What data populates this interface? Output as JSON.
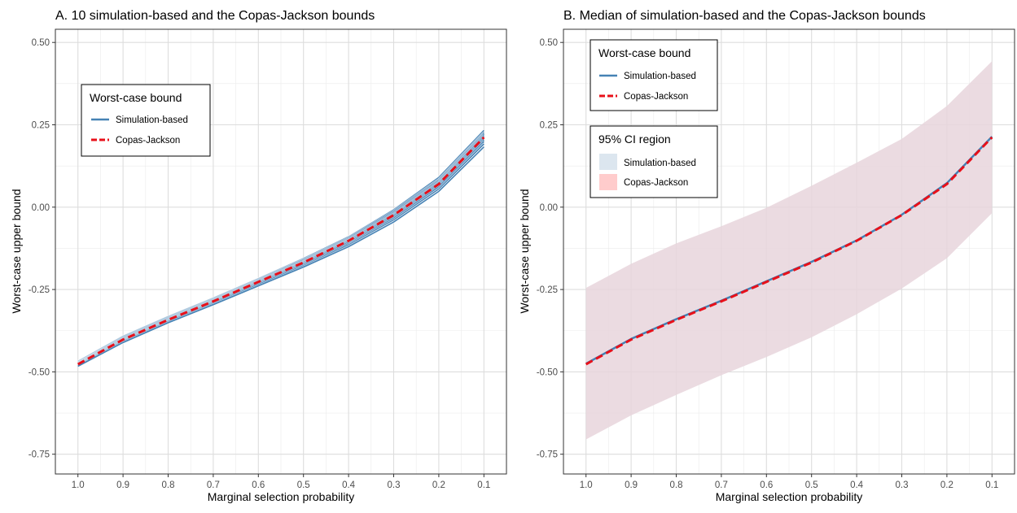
{
  "chart_data": [
    {
      "type": "line",
      "title": "A. 10 simulation-based and the Copas-Jackson bounds",
      "xlabel": "Marginal selection probability",
      "ylabel": "Worst-case upper bound",
      "x": [
        1.0,
        0.9,
        0.8,
        0.7,
        0.6,
        0.5,
        0.4,
        0.3,
        0.2,
        0.1
      ],
      "x_tick_labels": [
        "1.0",
        "0.9",
        "0.8",
        "0.7",
        "0.6",
        "0.5",
        "0.4",
        "0.3",
        "0.2",
        "0.1"
      ],
      "x_reversed": true,
      "xlim": [
        1.05,
        0.05
      ],
      "ylim": [
        -0.81,
        0.54
      ],
      "y_ticks": [
        -0.75,
        -0.5,
        -0.25,
        0.0,
        0.25,
        0.5
      ],
      "y_tick_labels": [
        "-0.75",
        "-0.50",
        "-0.25",
        "0.00",
        "0.25",
        "0.50"
      ],
      "grid": true,
      "legend": {
        "title": "Worst-case bound",
        "placement": "top-left",
        "entries": [
          {
            "label": "Simulation-based",
            "color": "#4682B4",
            "style": "solid"
          },
          {
            "label": "Copas-Jackson",
            "color": "#E8101A",
            "style": "dashed"
          }
        ]
      },
      "series": [
        {
          "kind": "simulation",
          "color": "#4682B4",
          "values": [
            -0.468,
            -0.392,
            -0.332,
            -0.276,
            -0.217,
            -0.156,
            -0.09,
            -0.008,
            0.09,
            0.233
          ]
        },
        {
          "kind": "simulation",
          "color": "#4682B4",
          "values": [
            -0.47,
            -0.394,
            -0.334,
            -0.278,
            -0.219,
            -0.159,
            -0.093,
            -0.012,
            0.084,
            0.226
          ]
        },
        {
          "kind": "simulation",
          "color": "#4682B4",
          "values": [
            -0.472,
            -0.396,
            -0.336,
            -0.28,
            -0.221,
            -0.161,
            -0.096,
            -0.016,
            0.08,
            0.222
          ]
        },
        {
          "kind": "simulation",
          "color": "#4682B4",
          "values": [
            -0.473,
            -0.398,
            -0.338,
            -0.282,
            -0.223,
            -0.164,
            -0.099,
            -0.02,
            0.076,
            0.218
          ]
        },
        {
          "kind": "simulation",
          "color": "#4682B4",
          "values": [
            -0.475,
            -0.4,
            -0.34,
            -0.284,
            -0.225,
            -0.166,
            -0.101,
            -0.023,
            0.073,
            0.214
          ]
        },
        {
          "kind": "simulation",
          "color": "#4682B4",
          "values": [
            -0.476,
            -0.402,
            -0.342,
            -0.286,
            -0.227,
            -0.168,
            -0.104,
            -0.026,
            0.069,
            0.209
          ]
        },
        {
          "kind": "simulation",
          "color": "#4682B4",
          "values": [
            -0.478,
            -0.404,
            -0.344,
            -0.288,
            -0.229,
            -0.171,
            -0.107,
            -0.03,
            0.065,
            0.204
          ]
        },
        {
          "kind": "simulation",
          "color": "#4682B4",
          "values": [
            -0.479,
            -0.406,
            -0.346,
            -0.29,
            -0.232,
            -0.174,
            -0.111,
            -0.034,
            0.061,
            0.199
          ]
        },
        {
          "kind": "simulation",
          "color": "#4682B4",
          "values": [
            -0.481,
            -0.408,
            -0.348,
            -0.293,
            -0.235,
            -0.178,
            -0.115,
            -0.039,
            0.055,
            0.192
          ]
        },
        {
          "kind": "simulation",
          "color": "#4682B4",
          "values": [
            -0.483,
            -0.411,
            -0.351,
            -0.296,
            -0.239,
            -0.182,
            -0.12,
            -0.045,
            0.048,
            0.183
          ]
        },
        {
          "kind": "copas",
          "color": "#E8101A",
          "values": [
            -0.477,
            -0.402,
            -0.342,
            -0.286,
            -0.227,
            -0.168,
            -0.102,
            -0.024,
            0.07,
            0.212
          ]
        }
      ]
    },
    {
      "type": "line",
      "title": "B. Median of simulation-based and the Copas-Jackson bounds",
      "xlabel": "Marginal selection probability",
      "ylabel": "Worst-case upper bound",
      "x": [
        1.0,
        0.9,
        0.8,
        0.7,
        0.6,
        0.5,
        0.4,
        0.3,
        0.2,
        0.1
      ],
      "x_tick_labels": [
        "1.0",
        "0.9",
        "0.8",
        "0.7",
        "0.6",
        "0.5",
        "0.4",
        "0.3",
        "0.2",
        "0.1"
      ],
      "x_reversed": true,
      "xlim": [
        1.05,
        0.05
      ],
      "ylim": [
        -0.81,
        0.54
      ],
      "y_ticks": [
        -0.75,
        -0.5,
        -0.25,
        0.0,
        0.25,
        0.5
      ],
      "y_tick_labels": [
        "-0.75",
        "-0.50",
        "-0.25",
        "0.00",
        "0.25",
        "0.50"
      ],
      "grid": true,
      "legend": [
        {
          "title": "Worst-case bound",
          "placement": "top-left",
          "entries": [
            {
              "label": "Simulation-based",
              "color": "#4682B4",
              "style": "solid"
            },
            {
              "label": "Copas-Jackson",
              "color": "#E8101A",
              "style": "dashed"
            }
          ]
        },
        {
          "title": "95% CI region",
          "placement": "top-left",
          "entries": [
            {
              "label": "Simulation-based",
              "color": "#DCE6EF",
              "style": "fill"
            },
            {
              "label": "Copas-Jackson",
              "color": "#FFCCCC",
              "style": "fill"
            }
          ]
        }
      ],
      "series": [
        {
          "kind": "simulation-median",
          "color": "#4682B4",
          "values": [
            -0.475,
            -0.4,
            -0.34,
            -0.284,
            -0.225,
            -0.166,
            -0.101,
            -0.023,
            0.073,
            0.214
          ]
        },
        {
          "kind": "copas",
          "color": "#E8101A",
          "values": [
            -0.477,
            -0.402,
            -0.342,
            -0.286,
            -0.227,
            -0.168,
            -0.102,
            -0.024,
            0.07,
            0.212
          ]
        }
      ],
      "ci_band": {
        "fill": "#E8D5DC",
        "lower": [
          -0.705,
          -0.632,
          -0.57,
          -0.51,
          -0.455,
          -0.395,
          -0.325,
          -0.247,
          -0.155,
          -0.018
        ],
        "upper": [
          -0.245,
          -0.172,
          -0.11,
          -0.058,
          -0.002,
          0.065,
          0.135,
          0.207,
          0.307,
          0.443
        ]
      }
    }
  ]
}
